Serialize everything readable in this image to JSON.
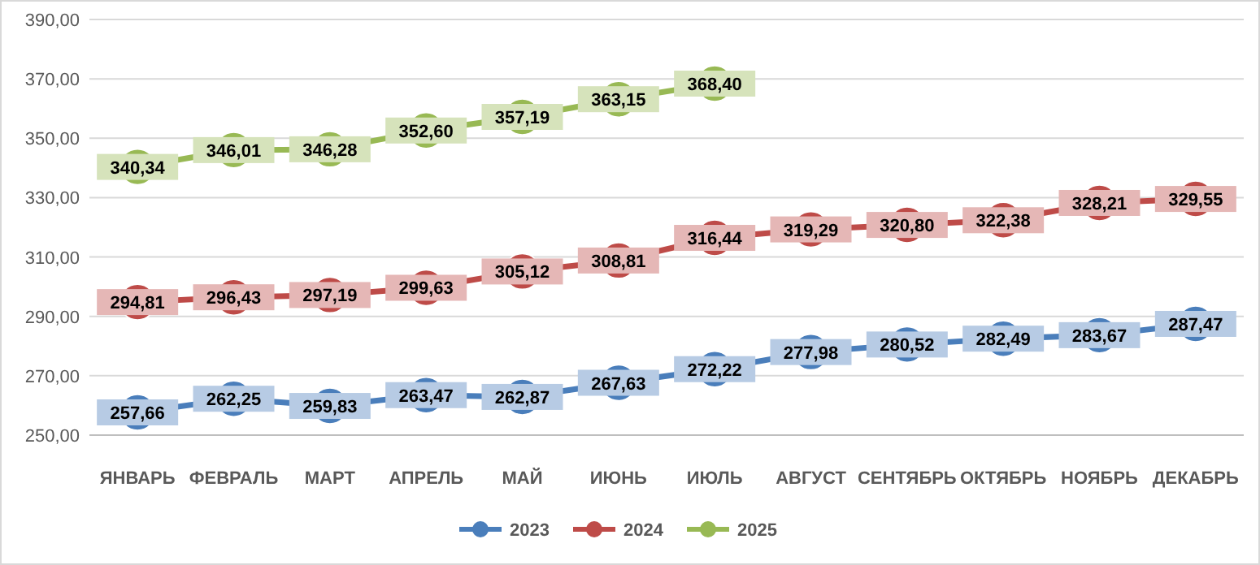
{
  "chart_data": {
    "type": "line",
    "categories": [
      "ЯНВАРЬ",
      "ФЕВРАЛЬ",
      "МАРТ",
      "АПРЕЛЬ",
      "МАЙ",
      "ИЮНЬ",
      "ИЮЛЬ",
      "АВГУСТ",
      "СЕНТЯБРЬ",
      "ОКТЯБРЬ",
      "НОЯБРЬ",
      "ДЕКАБРЬ"
    ],
    "ylim": [
      250,
      390
    ],
    "yticks": [
      {
        "value": 250,
        "label": "250,00"
      },
      {
        "value": 270,
        "label": "270,00"
      },
      {
        "value": 290,
        "label": "290,00"
      },
      {
        "value": 310,
        "label": "310,00"
      },
      {
        "value": 330,
        "label": "330,00"
      },
      {
        "value": 350,
        "label": "350,00"
      },
      {
        "value": 370,
        "label": "370,00"
      },
      {
        "value": 390,
        "label": "390,00"
      }
    ],
    "grid": "y",
    "legend": "bottom",
    "marker": "circle",
    "line_style": "solid",
    "series": [
      {
        "name": "2023",
        "color": "#4a7ebb",
        "values": [
          257.66,
          262.25,
          259.83,
          263.47,
          262.87,
          267.63,
          272.22,
          277.98,
          280.52,
          282.49,
          283.67,
          287.47
        ],
        "value_labels": [
          "257,66",
          "262,25",
          "259,83",
          "263,47",
          "262,87",
          "267,63",
          "272,22",
          "277,98",
          "280,52",
          "282,49",
          "283,67",
          "287,47"
        ]
      },
      {
        "name": "2024",
        "color": "#be4b48",
        "values": [
          294.81,
          296.43,
          297.19,
          299.63,
          305.12,
          308.81,
          316.44,
          319.29,
          320.8,
          322.38,
          328.21,
          329.55
        ],
        "value_labels": [
          "294,81",
          "296,43",
          "297,19",
          "299,63",
          "305,12",
          "308,81",
          "316,44",
          "319,29",
          "320,80",
          "322,38",
          "328,21",
          "329,55"
        ]
      },
      {
        "name": "2025",
        "color": "#98b954",
        "values": [
          340.34,
          346.01,
          346.28,
          352.6,
          357.19,
          363.15,
          368.4,
          null,
          null,
          null,
          null,
          null
        ],
        "value_labels": [
          "340,34",
          "346,01",
          "346,28",
          "352,60",
          "357,19",
          "363,15",
          "368,40",
          null,
          null,
          null,
          null,
          null
        ]
      }
    ]
  }
}
